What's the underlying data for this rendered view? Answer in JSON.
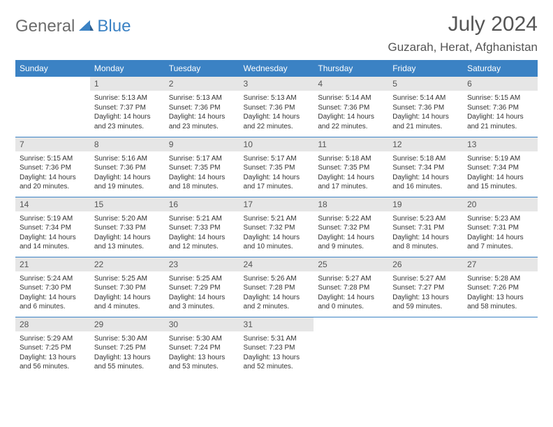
{
  "logo": {
    "general": "General",
    "blue": "Blue"
  },
  "title": "July 2024",
  "location": "Guzarah, Herat, Afghanistan",
  "colors": {
    "header_bg": "#3b82c4",
    "header_fg": "#ffffff",
    "daynum_bg": "#e6e6e6",
    "daynum_fg": "#555555",
    "text": "#333333",
    "rule": "#3b82c4",
    "title_fg": "#555555"
  },
  "daysOfWeek": [
    "Sunday",
    "Monday",
    "Tuesday",
    "Wednesday",
    "Thursday",
    "Friday",
    "Saturday"
  ],
  "weeks": [
    [
      null,
      {
        "n": "1",
        "sr": "5:13 AM",
        "ss": "7:37 PM",
        "dl": "14 hours and 23 minutes."
      },
      {
        "n": "2",
        "sr": "5:13 AM",
        "ss": "7:36 PM",
        "dl": "14 hours and 23 minutes."
      },
      {
        "n": "3",
        "sr": "5:13 AM",
        "ss": "7:36 PM",
        "dl": "14 hours and 22 minutes."
      },
      {
        "n": "4",
        "sr": "5:14 AM",
        "ss": "7:36 PM",
        "dl": "14 hours and 22 minutes."
      },
      {
        "n": "5",
        "sr": "5:14 AM",
        "ss": "7:36 PM",
        "dl": "14 hours and 21 minutes."
      },
      {
        "n": "6",
        "sr": "5:15 AM",
        "ss": "7:36 PM",
        "dl": "14 hours and 21 minutes."
      }
    ],
    [
      {
        "n": "7",
        "sr": "5:15 AM",
        "ss": "7:36 PM",
        "dl": "14 hours and 20 minutes."
      },
      {
        "n": "8",
        "sr": "5:16 AM",
        "ss": "7:36 PM",
        "dl": "14 hours and 19 minutes."
      },
      {
        "n": "9",
        "sr": "5:17 AM",
        "ss": "7:35 PM",
        "dl": "14 hours and 18 minutes."
      },
      {
        "n": "10",
        "sr": "5:17 AM",
        "ss": "7:35 PM",
        "dl": "14 hours and 17 minutes."
      },
      {
        "n": "11",
        "sr": "5:18 AM",
        "ss": "7:35 PM",
        "dl": "14 hours and 17 minutes."
      },
      {
        "n": "12",
        "sr": "5:18 AM",
        "ss": "7:34 PM",
        "dl": "14 hours and 16 minutes."
      },
      {
        "n": "13",
        "sr": "5:19 AM",
        "ss": "7:34 PM",
        "dl": "14 hours and 15 minutes."
      }
    ],
    [
      {
        "n": "14",
        "sr": "5:19 AM",
        "ss": "7:34 PM",
        "dl": "14 hours and 14 minutes."
      },
      {
        "n": "15",
        "sr": "5:20 AM",
        "ss": "7:33 PM",
        "dl": "14 hours and 13 minutes."
      },
      {
        "n": "16",
        "sr": "5:21 AM",
        "ss": "7:33 PM",
        "dl": "14 hours and 12 minutes."
      },
      {
        "n": "17",
        "sr": "5:21 AM",
        "ss": "7:32 PM",
        "dl": "14 hours and 10 minutes."
      },
      {
        "n": "18",
        "sr": "5:22 AM",
        "ss": "7:32 PM",
        "dl": "14 hours and 9 minutes."
      },
      {
        "n": "19",
        "sr": "5:23 AM",
        "ss": "7:31 PM",
        "dl": "14 hours and 8 minutes."
      },
      {
        "n": "20",
        "sr": "5:23 AM",
        "ss": "7:31 PM",
        "dl": "14 hours and 7 minutes."
      }
    ],
    [
      {
        "n": "21",
        "sr": "5:24 AM",
        "ss": "7:30 PM",
        "dl": "14 hours and 6 minutes."
      },
      {
        "n": "22",
        "sr": "5:25 AM",
        "ss": "7:30 PM",
        "dl": "14 hours and 4 minutes."
      },
      {
        "n": "23",
        "sr": "5:25 AM",
        "ss": "7:29 PM",
        "dl": "14 hours and 3 minutes."
      },
      {
        "n": "24",
        "sr": "5:26 AM",
        "ss": "7:28 PM",
        "dl": "14 hours and 2 minutes."
      },
      {
        "n": "25",
        "sr": "5:27 AM",
        "ss": "7:28 PM",
        "dl": "14 hours and 0 minutes."
      },
      {
        "n": "26",
        "sr": "5:27 AM",
        "ss": "7:27 PM",
        "dl": "13 hours and 59 minutes."
      },
      {
        "n": "27",
        "sr": "5:28 AM",
        "ss": "7:26 PM",
        "dl": "13 hours and 58 minutes."
      }
    ],
    [
      {
        "n": "28",
        "sr": "5:29 AM",
        "ss": "7:25 PM",
        "dl": "13 hours and 56 minutes."
      },
      {
        "n": "29",
        "sr": "5:30 AM",
        "ss": "7:25 PM",
        "dl": "13 hours and 55 minutes."
      },
      {
        "n": "30",
        "sr": "5:30 AM",
        "ss": "7:24 PM",
        "dl": "13 hours and 53 minutes."
      },
      {
        "n": "31",
        "sr": "5:31 AM",
        "ss": "7:23 PM",
        "dl": "13 hours and 52 minutes."
      },
      null,
      null,
      null
    ]
  ],
  "labels": {
    "sunrise": "Sunrise:",
    "sunset": "Sunset:",
    "daylight": "Daylight:"
  }
}
